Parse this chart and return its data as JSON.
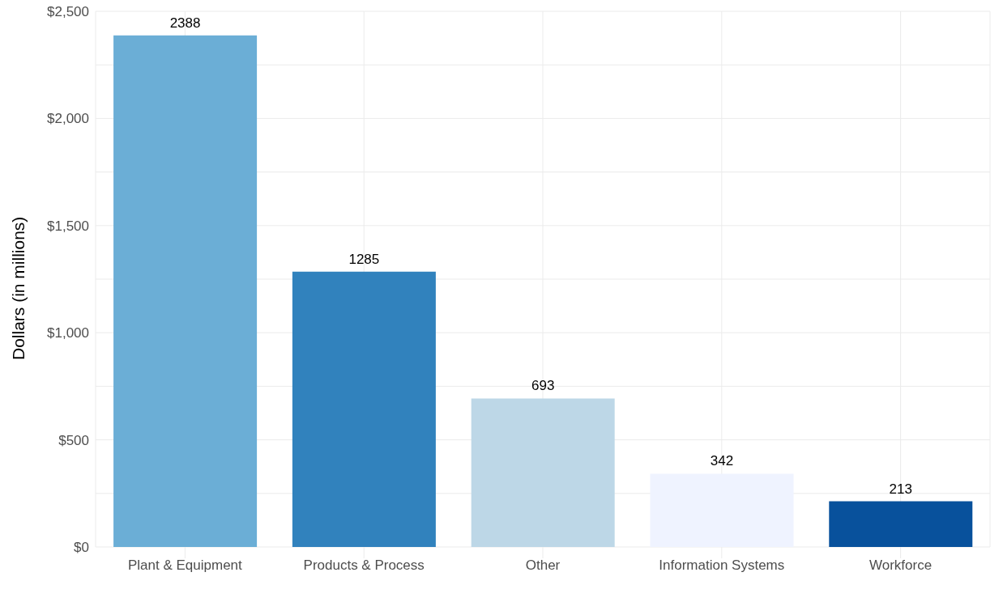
{
  "chart_data": {
    "type": "bar",
    "ylabel": "Dollars (in millions)",
    "categories": [
      "Plant & Equipment",
      "Products & Process",
      "Other",
      "Information Systems",
      "Workforce"
    ],
    "values": [
      2388,
      1285,
      693,
      342,
      213
    ],
    "colors": [
      "#6baed6",
      "#3182bd",
      "#bdd7e7",
      "#eff3ff",
      "#08519c"
    ],
    "ylim": [
      0,
      2500
    ],
    "yticks": [
      {
        "value": 0,
        "label": "$0"
      },
      {
        "value": 250,
        "label": null
      },
      {
        "value": 500,
        "label": "$500"
      },
      {
        "value": 750,
        "label": null
      },
      {
        "value": 1000,
        "label": "$1,000"
      },
      {
        "value": 1250,
        "label": null
      },
      {
        "value": 1500,
        "label": "$1,500"
      },
      {
        "value": 1750,
        "label": null
      },
      {
        "value": 2000,
        "label": "$2,000"
      },
      {
        "value": 2250,
        "label": null
      },
      {
        "value": 2500,
        "label": "$2,500"
      }
    ],
    "grid": true,
    "data_labels": true
  }
}
